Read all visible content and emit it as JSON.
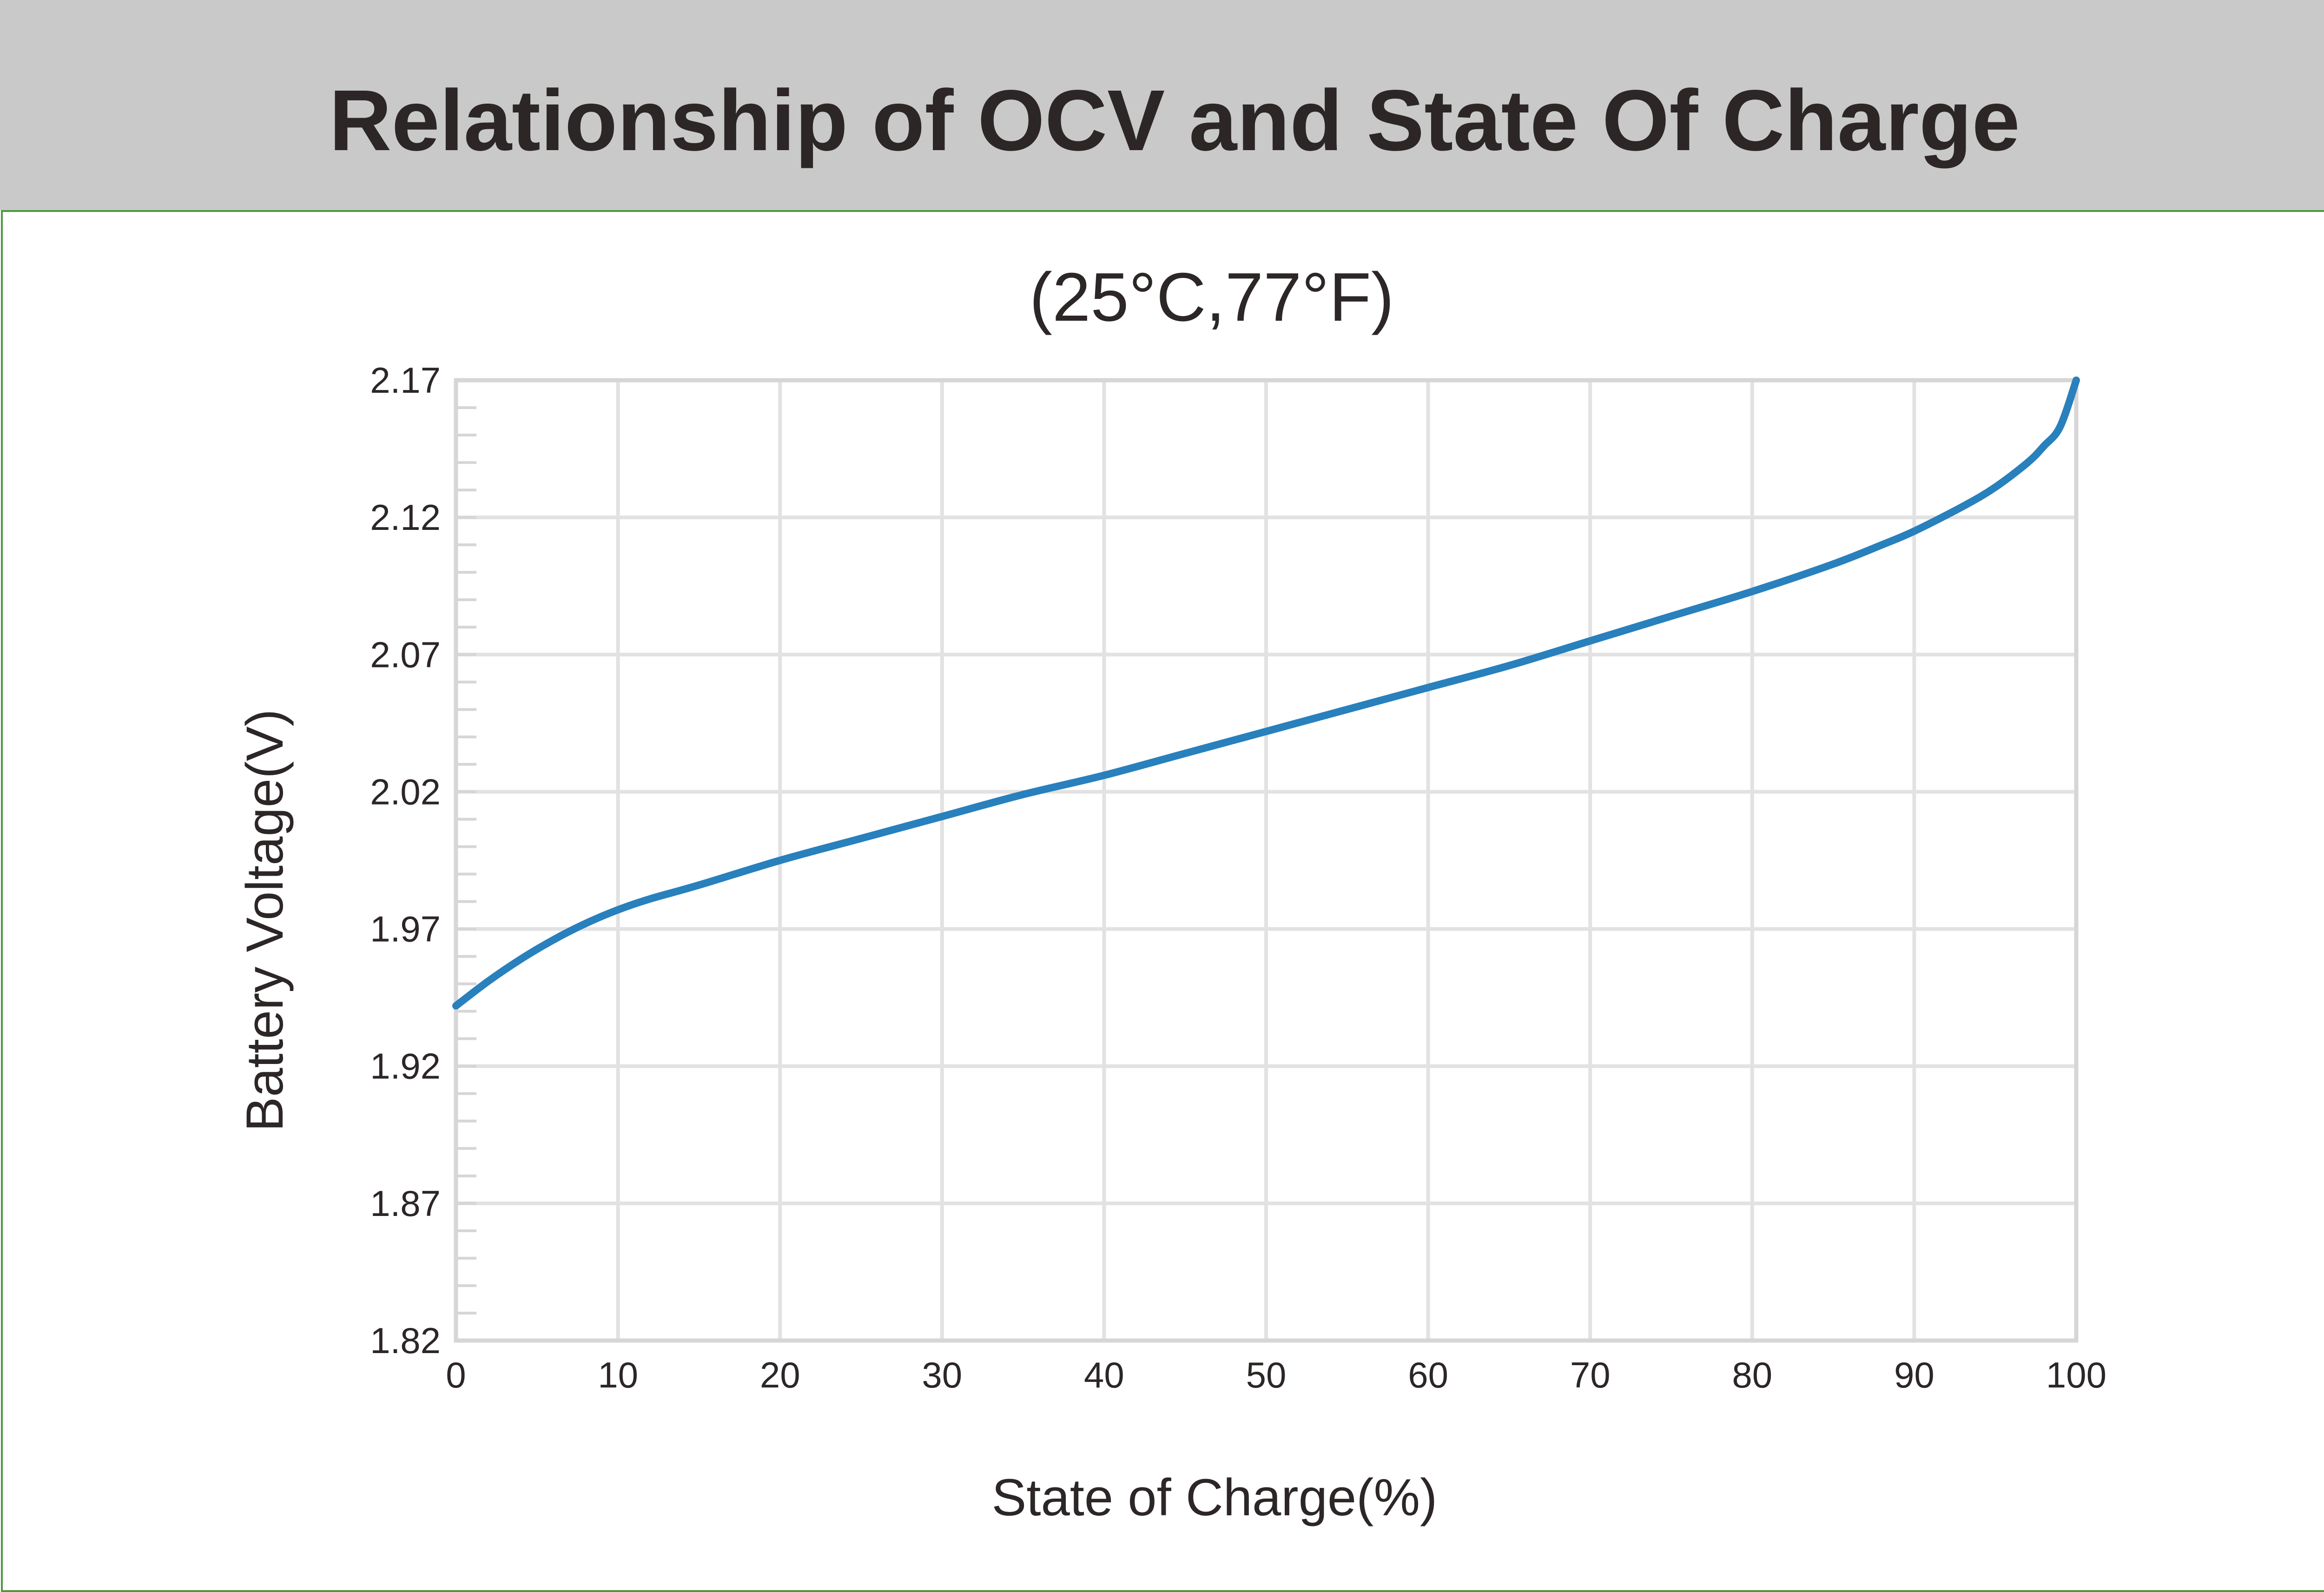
{
  "header": {
    "title": "Relationship of OCV and State Of Charge",
    "background": "#c8c9c8",
    "title_color": "#2c2626"
  },
  "panel": {
    "border_color": "#4a9a3c"
  },
  "chart_data": {
    "type": "line",
    "title": "",
    "subtitle": "(25°C,77°F)",
    "xlabel": "State of Charge(%)",
    "ylabel": "Battery Voltage(V)",
    "xlim": [
      0,
      100
    ],
    "ylim": [
      1.82,
      2.17
    ],
    "x_ticks": [
      0,
      10,
      20,
      30,
      40,
      50,
      60,
      70,
      80,
      90,
      100
    ],
    "x_tick_labels": [
      "0",
      "10",
      "20",
      "30",
      "40",
      "50",
      "60",
      "70",
      "80",
      "90",
      "100"
    ],
    "y_ticks": [
      1.82,
      1.87,
      1.92,
      1.97,
      2.02,
      2.07,
      2.12,
      2.17
    ],
    "y_tick_labels": [
      "1.82",
      "1.87",
      "1.92",
      "1.97",
      "2.02",
      "2.07",
      "2.12",
      "2.17"
    ],
    "y_minor_step": 0.01,
    "grid": true,
    "legend": "none",
    "line_color": "#2880bd",
    "grid_color": "#e2e2e2",
    "axis_color": "#d6d6d6",
    "text_color": "#2c2626",
    "series": [
      {
        "x": [
          0,
          2,
          4,
          6,
          8,
          10,
          12,
          15,
          20,
          25,
          30,
          35,
          40,
          45,
          50,
          55,
          60,
          65,
          70,
          75,
          80,
          85,
          88,
          90,
          93,
          95,
          97,
          98,
          99,
          100
        ],
        "values": [
          1.942,
          1.951,
          1.959,
          1.966,
          1.972,
          1.977,
          1.981,
          1.986,
          1.995,
          2.003,
          2.011,
          2.019,
          2.026,
          2.034,
          2.042,
          2.05,
          2.058,
          2.066,
          2.075,
          2.084,
          2.093,
          2.103,
          2.11,
          2.115,
          2.124,
          2.131,
          2.14,
          2.146,
          2.153,
          2.17
        ]
      }
    ]
  }
}
